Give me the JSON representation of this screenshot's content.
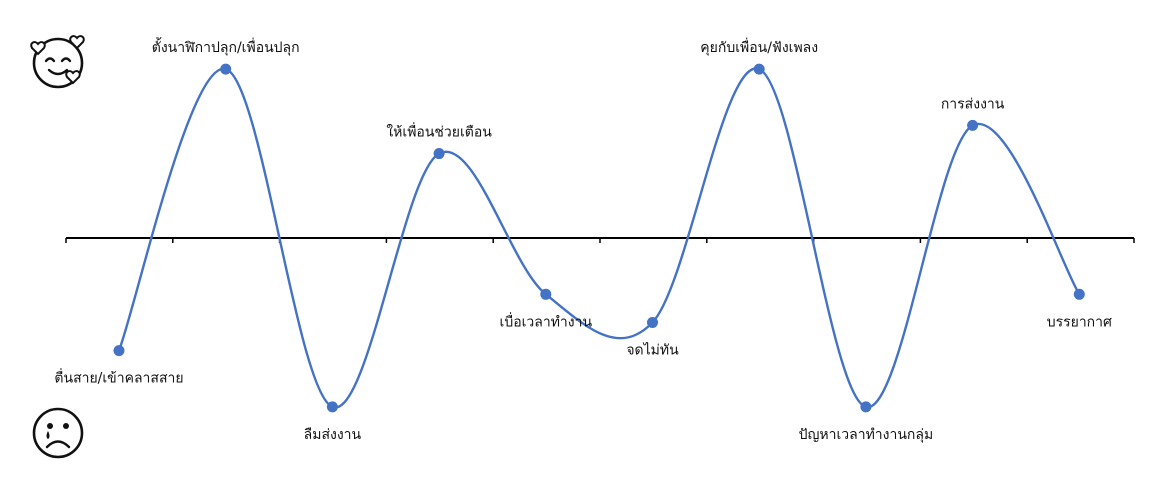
{
  "chart_data": {
    "type": "line",
    "title": "",
    "xlabel": "",
    "ylabel": "",
    "smooth": true,
    "line_color": "#4472C4",
    "axis_color": "#000000",
    "legend": "none",
    "grid": false,
    "ylim": [
      -3,
      3
    ],
    "points": [
      {
        "label": "ตื่นสาย/เข้าคลาสสาย",
        "value": -2,
        "label_pos": "below"
      },
      {
        "label": "ตั้งนาฬิกาปลุก/เพื่อนปลุก",
        "value": 3,
        "label_pos": "above"
      },
      {
        "label": "ลืมส่งงาน",
        "value": -3,
        "label_pos": "below"
      },
      {
        "label": "ให้เพื่อนช่วยเตือน",
        "value": 1.5,
        "label_pos": "above"
      },
      {
        "label": "เบื่อเวลาทำงาน",
        "value": -1,
        "label_pos": "below"
      },
      {
        "label": "จดไม่ทัน",
        "value": -1.5,
        "label_pos": "below"
      },
      {
        "label": "คุยกับเพื่อน/ฟังเพลง",
        "value": 3,
        "label_pos": "above"
      },
      {
        "label": "ปัญหาเวลาทำงานกลุ่ม",
        "value": -3,
        "label_pos": "below"
      },
      {
        "label": "การส่งงาน",
        "value": 2,
        "label_pos": "above"
      },
      {
        "label": "บรรยากาศ",
        "value": -1,
        "label_pos": "below"
      }
    ]
  },
  "icons": {
    "top": "smiling-face-with-hearts-icon",
    "bottom": "crying-face-icon"
  }
}
